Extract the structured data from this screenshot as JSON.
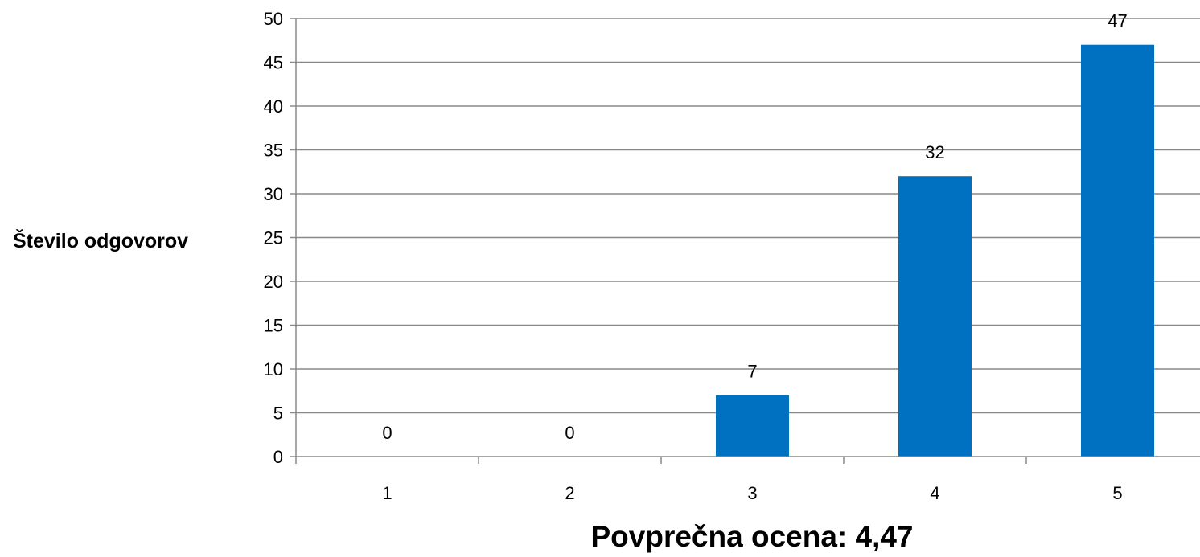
{
  "chart_data": {
    "type": "bar",
    "categories": [
      "1",
      "2",
      "3",
      "4",
      "5"
    ],
    "values": [
      0,
      0,
      7,
      32,
      47
    ],
    "data_labels": [
      "0",
      "0",
      "7",
      "32",
      "47"
    ],
    "ylabel": "Število odgovorov",
    "xlabel": "Povprečna ocena: 4,47",
    "ylim": [
      0,
      50
    ],
    "yticks": [
      0,
      5,
      10,
      15,
      20,
      25,
      30,
      35,
      40,
      45,
      50
    ],
    "ytick_labels": [
      "0",
      "5",
      "10",
      "15",
      "20",
      "25",
      "30",
      "35",
      "40",
      "45",
      "50"
    ],
    "grid": true,
    "legend": "none",
    "bar_color": "#0070C0",
    "grid_color": "#888888"
  }
}
